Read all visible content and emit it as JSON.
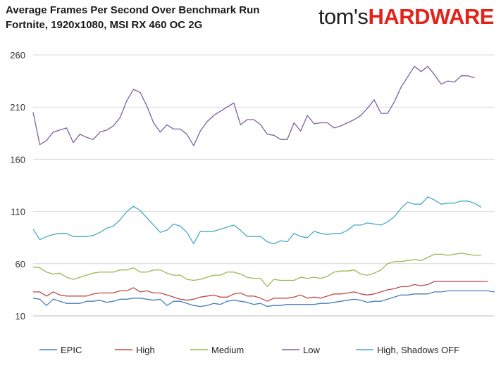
{
  "header": {
    "title_line1": "Average Frames Per Second Over Benchmark Run",
    "title_line2": "Fortnite, 1920x1080, MSI RX 460 OC 2G",
    "logo_left": "tom's",
    "logo_right": "HARDWARE"
  },
  "colors": {
    "logo_accent": "#e2231a",
    "grid": "#d9d9d9",
    "axis": "#bfbfbf"
  },
  "chart_data": {
    "type": "line",
    "title": "Average Frames Per Second Over Benchmark Run",
    "subtitle": "Fortnite, 1920x1080, MSI RX 460 OC 2G",
    "xlabel": "",
    "ylabel": "",
    "ylim": [
      10,
      260
    ],
    "yticks": [
      10,
      60,
      110,
      160,
      210,
      260
    ],
    "grid": true,
    "legend_position": "bottom",
    "series": [
      {
        "name": "EPIC",
        "color": "#4a7ebb",
        "values": [
          27,
          26,
          20,
          26,
          24,
          22,
          22,
          22,
          24,
          24,
          25,
          23,
          24,
          26,
          26,
          27,
          27,
          26,
          25,
          26,
          20,
          24,
          24,
          22,
          20,
          19,
          20,
          22,
          21,
          24,
          25,
          24,
          23,
          21,
          22,
          19,
          20,
          20,
          21,
          21,
          21,
          21,
          21,
          22,
          22,
          23,
          24,
          25,
          26,
          25,
          23,
          24,
          24,
          26,
          28,
          30,
          30,
          31,
          31,
          31,
          33,
          33,
          34,
          34,
          34,
          34,
          34,
          34,
          34,
          33
        ]
      },
      {
        "name": "High",
        "color": "#be4b48",
        "values": [
          33,
          33,
          29,
          33,
          30,
          29,
          29,
          29,
          29,
          31,
          32,
          32,
          32,
          34,
          34,
          37,
          33,
          34,
          32,
          32,
          30,
          28,
          26,
          25,
          26,
          28,
          29,
          30,
          28,
          28,
          31,
          32,
          29,
          29,
          27,
          24,
          27,
          27,
          27,
          28,
          30,
          27,
          28,
          27,
          29,
          31,
          31,
          32,
          33,
          31,
          30,
          31,
          33,
          35,
          36,
          38,
          38,
          40,
          39,
          40,
          43,
          43,
          43,
          43,
          43,
          43,
          43,
          43,
          43
        ]
      },
      {
        "name": "Medium",
        "color": "#98b954",
        "values": [
          57,
          56,
          52,
          50,
          51,
          47,
          45,
          47,
          49,
          51,
          52,
          52,
          52,
          54,
          54,
          56,
          52,
          52,
          54,
          54,
          51,
          49,
          49,
          45,
          44,
          45,
          47,
          49,
          49,
          52,
          52,
          50,
          47,
          46,
          46,
          38,
          45,
          44,
          44,
          44,
          47,
          46,
          47,
          46,
          48,
          52,
          53,
          53,
          54,
          50,
          49,
          51,
          54,
          60,
          62,
          62,
          63,
          64,
          63,
          66,
          69,
          69,
          68,
          69,
          70,
          69,
          68,
          68
        ]
      },
      {
        "name": "Low",
        "color": "#7d60a0",
        "values": [
          205,
          174,
          178,
          186,
          188,
          190,
          176,
          184,
          181,
          179,
          186,
          188,
          192,
          200,
          216,
          227,
          224,
          211,
          195,
          186,
          193,
          189,
          189,
          184,
          173,
          187,
          196,
          202,
          206,
          210,
          214,
          193,
          198,
          198,
          193,
          184,
          183,
          179,
          179,
          195,
          187,
          202,
          194,
          195,
          195,
          190,
          192,
          195,
          198,
          202,
          209,
          217,
          204,
          204,
          215,
          229,
          239,
          249,
          244,
          249,
          241,
          232,
          235,
          234,
          240,
          240,
          238
        ]
      },
      {
        "name": "High, Shadows OFF",
        "color": "#46aac5",
        "values": [
          93,
          83,
          86,
          88,
          89,
          89,
          86,
          86,
          86,
          87,
          90,
          94,
          96,
          102,
          110,
          115,
          111,
          104,
          97,
          90,
          92,
          98,
          96,
          90,
          79,
          91,
          91,
          91,
          93,
          95,
          97,
          92,
          86,
          86,
          86,
          81,
          79,
          82,
          81,
          89,
          86,
          85,
          91,
          89,
          88,
          89,
          89,
          92,
          97,
          97,
          99,
          98,
          97,
          100,
          105,
          113,
          119,
          117,
          117,
          124,
          121,
          117,
          118,
          118,
          120,
          120,
          118,
          114
        ]
      }
    ]
  }
}
